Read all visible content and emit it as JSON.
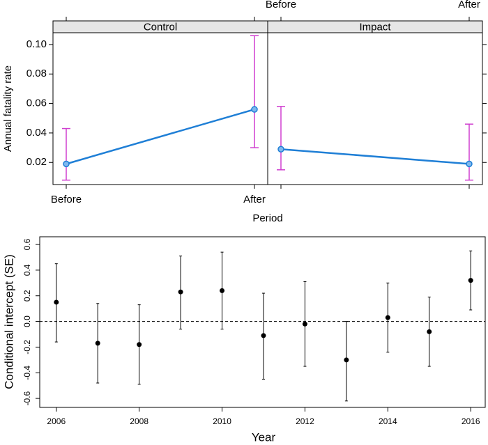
{
  "chart_data": [
    {
      "type": "line",
      "y_label": "Annual fatality rate",
      "x_label": "Period",
      "categories": [
        "Before",
        "After"
      ],
      "ylim": [
        0.005,
        0.108
      ],
      "yticks": [
        0.02,
        0.04,
        0.06,
        0.08,
        {
          "value": 0.1,
          "label": "0.10"
        }
      ],
      "line_color": "#1f7fd6",
      "errorbar_color": "#d03fd0",
      "panels": [
        {
          "title": "Control",
          "values": [
            0.019,
            0.056
          ],
          "lower": [
            0.008,
            0.03
          ],
          "upper": [
            0.043,
            0.106
          ]
        },
        {
          "title": "Impact",
          "values": [
            0.029,
            0.019
          ],
          "lower": [
            0.015,
            0.008
          ],
          "upper": [
            0.058,
            0.046
          ]
        }
      ]
    },
    {
      "type": "scatter",
      "x_label": "Year",
      "y_label": "Conditional intercept (SE)",
      "x": [
        2006,
        2007,
        2008,
        2009,
        2010,
        2011,
        2012,
        2013,
        2014,
        2015,
        2016
      ],
      "values": [
        0.15,
        -0.17,
        -0.18,
        0.23,
        0.24,
        -0.11,
        -0.02,
        -0.3,
        0.03,
        -0.08,
        0.32
      ],
      "lower": [
        -0.16,
        -0.48,
        -0.49,
        -0.06,
        -0.06,
        -0.45,
        -0.35,
        -0.62,
        -0.24,
        -0.35,
        0.09
      ],
      "upper": [
        0.45,
        0.14,
        0.13,
        0.51,
        0.54,
        0.22,
        0.31,
        0.0,
        0.3,
        0.19,
        0.55
      ],
      "xlim": [
        2005.6,
        2016.35
      ],
      "ylim": [
        -0.67,
        0.66
      ],
      "xticks": [
        2006,
        2008,
        2010,
        2012,
        2014,
        2016
      ],
      "yticks": [
        -0.6,
        -0.4,
        -0.2,
        {
          "value": 0,
          "label": "0.0"
        },
        0.2,
        0.4,
        0.6
      ],
      "reference_line": 0,
      "color": "#000000"
    }
  ]
}
